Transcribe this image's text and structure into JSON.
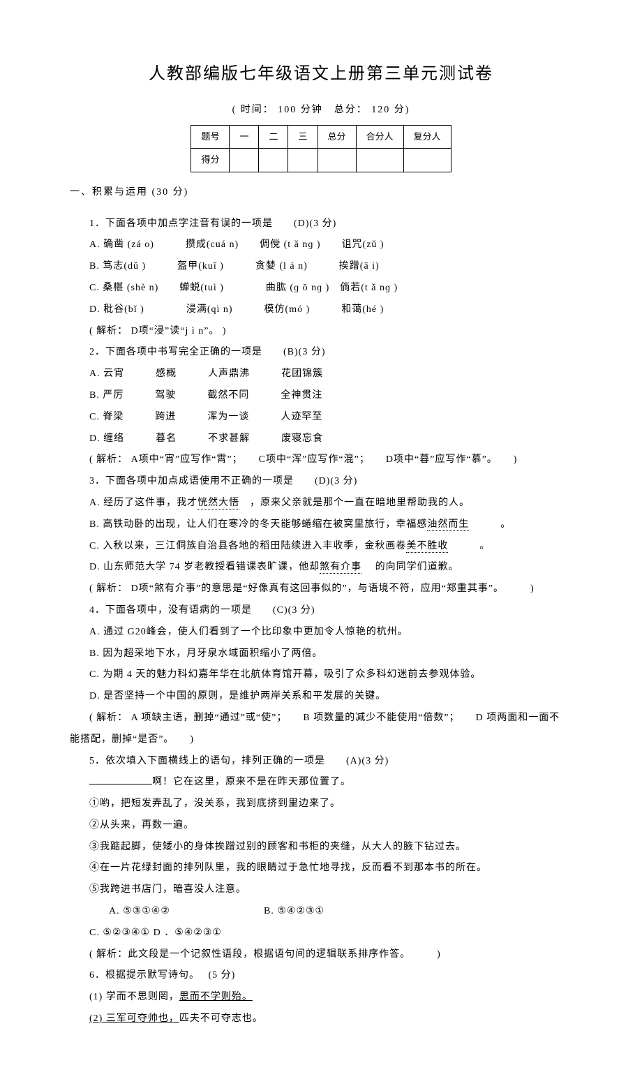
{
  "title": "人教部编版七年级语文上册第三单元测试卷",
  "subtitle": "( 时间： 100 分钟　总分： 120 分)",
  "score_table": {
    "headers": [
      "题号",
      "一",
      "二",
      "三",
      "总分",
      "合分人",
      "复分人"
    ],
    "row2_label": "得分"
  },
  "section1": "一、积累与运用  (30 分)",
  "q1": {
    "stem": "1．下面各项中加点字注音有误的一项是　　(D)(3  分)",
    "opts": [
      "A.  确凿 (zá o)　　　攒成(cuá n)　　倜傥 (t ǎ nɡ )　　诅咒(zǔ )",
      "B.  笃志(dǔ )　　　盔甲(kuī )　　　贪婪 (l á n)　　　挨蹭(ā i)",
      "C.  桑椹 (shè n)　　蝉蜕(tuì )　　　　曲肱 (ɡ ō nɡ )　倘若(t ǎ nɡ )",
      "D.  秕谷(bǐ )　　　　浸满(qì n)　　　模仿(mó )　　　和蔼(hé )"
    ],
    "note": "( 解析： D项“浸”读“j ì n”。 )"
  },
  "q2": {
    "stem": "2．下面各项中书写完全正确的一项是　　(B)(3  分)",
    "opts": [
      "A.  云宵　　　感概　　　人声鼎沸　　　花团锦簇",
      "B.  严厉　　　驾驶　　　截然不同　　　全神贯注",
      "C.  脊梁　　　跨进　　　浑为一谈　　　人迹罕至",
      "D.  缠络　　　暮名　　　不求甚解　　　废寝忘食"
    ],
    "note": "( 解析： A项中“宵”应写作“霄”；　　C项中“浑”应写作“混”；　　D项中“暮”应写作“慕”。　　)"
  },
  "q3": {
    "stem": "3．下面各项中加点成语使用不正确的一项是　　(D)(3  分)",
    "opts": {
      "a_pre": "A.  经历了这件事，我才",
      "a_dot": "恍然大悟",
      "a_post": "　，原来父亲就是那个一直在暗地里帮助我的人。",
      "b_pre": "B.  高铁动卧的出现，让人们在寒冷的冬天能够蜷缩在被窝里旅行，幸福感",
      "b_dot": "油然而生",
      "b_post": "　　　。",
      "c_pre": "C.  入秋以来，三江侗族自治县各地的稻田陆续进入丰收季，金秋画卷",
      "c_dot": "美不胜收",
      "c_post": "　　　。",
      "d_pre": "D.  山东师范大学   74 岁老教授看错课表旷课，他却",
      "d_dot": "煞有介事",
      "d_post": "　 的向同学们道歉。"
    },
    "note": "( 解析： D项“煞有介事”的意思是“好像真有这回事似的”，与语境不符，应用“郑重其事”。　　　)"
  },
  "q4": {
    "stem": "4．下面各项中，没有语病的一项是　　(C)(3  分)",
    "opts": [
      "A.  通过  G20峰会，使人们看到了一个比印象中更加令人惊艳的杭州。",
      "B.  因为超采地下水，月牙泉水域面积缩小了两倍。",
      "C.  为期  4 天的魅力科幻嘉年华在北航体育馆开幕，吸引了众多科幻迷前去参观体验。",
      "D.  是否坚持一个中国的原则，是维护两岸关系和平发展的关键。"
    ],
    "note": "( 解析： A 项缺主语，删掉“通过”或“使”；　　B 项数量的减少不能使用“倍数”；　　D 项两面和一面不"
  },
  "q4_note2": "能搭配，删掉“是否”。　　)",
  "q5": {
    "stem": "5．依次填入下面横线上的语句，排列正确的一项是　　(A)(3  分)",
    "line": "啊！它在这里，原来不是在昨天那位置了。",
    "items": [
      "①哟，把短发弄乱了，没关系，我到底挤到里边来了。",
      "②从头来，再数一遍。",
      "③我踮起脚，使矮小的身体挨蹭过别的顾客和书柜的夹缝，从大人的腋下钻过去。",
      "④在一片花绿封面的排列队里，我的眼睛过于急忙地寻找，反而看不到那本书的所在。",
      "⑤我跨进书店门，暗喜没人注意。"
    ],
    "opts": {
      "a": "A.  ⑤③①④②",
      "b": "B.  ⑤④②③①",
      "c": "C.  ⑤②③④①   D ．⑤④②③①"
    },
    "note": "( 解析：此文段是一个记叙性语段，根据语句间的逻辑联系排序作答。　　　)"
  },
  "q6": {
    "stem": "6．根据提示默写诗句。　 (5 分)",
    "items": {
      "i1_pre": "(1)  学而不思则罔，",
      "i1_u": "思而不学则殆。",
      "i2_u": "(2) 三军可夺帅也，",
      "i2_post": "匹夫不可夺志也。"
    }
  }
}
